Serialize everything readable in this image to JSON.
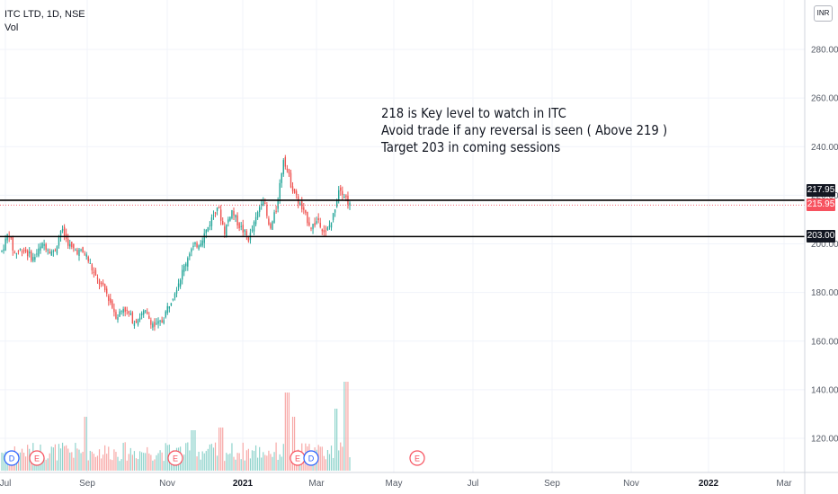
{
  "header": {
    "symbol": "ITC LTD, 1D, NSE",
    "indicator": "Vol"
  },
  "currency_badge": "INR",
  "annotation": {
    "lines": [
      "218 is Key level to watch in ITC",
      "Avoid trade if any reversal is seen ( Above 219 )",
      "Target 203 in coming sessions"
    ]
  },
  "price_labels": [
    {
      "value": "217.95",
      "color": "#131722"
    },
    {
      "value": "215.95",
      "color": "#f7525f"
    },
    {
      "value": "203.00",
      "color": "#131722"
    }
  ],
  "colors": {
    "up": "#26a69a",
    "down": "#ef5350",
    "up_vol": "#8fd3cc",
    "down_vol": "#f7a9a7",
    "grid": "#f0f3fa"
  },
  "chart_data": {
    "type": "candlestick",
    "title": "ITC LTD, 1D, NSE",
    "ylim": [
      105,
      300
    ],
    "y_ticks": [
      "280.00",
      "260.00",
      "240.00",
      "220.00",
      "200.00",
      "180.00",
      "160.00",
      "140.00",
      "120.00"
    ],
    "y_tick_values": [
      280,
      260,
      240,
      220,
      200,
      180,
      160,
      140,
      120
    ],
    "x_ticks": [
      "Jul",
      "Sep",
      "Nov",
      "2021",
      "Mar",
      "May",
      "Jul",
      "Sep",
      "Nov",
      "2022",
      "Mar"
    ],
    "horizontal_lines": [
      217.95,
      203.0
    ],
    "last_price": 215.95,
    "price_path": [
      {
        "t": 0,
        "p": 197
      },
      {
        "t": 0.02,
        "p": 205
      },
      {
        "t": 0.035,
        "p": 196
      },
      {
        "t": 0.06,
        "p": 198
      },
      {
        "t": 0.09,
        "p": 194
      },
      {
        "t": 0.12,
        "p": 200
      },
      {
        "t": 0.15,
        "p": 196
      },
      {
        "t": 0.17,
        "p": 206
      },
      {
        "t": 0.2,
        "p": 198
      },
      {
        "t": 0.24,
        "p": 196
      },
      {
        "t": 0.27,
        "p": 186
      },
      {
        "t": 0.3,
        "p": 180
      },
      {
        "t": 0.33,
        "p": 170
      },
      {
        "t": 0.35,
        "p": 174
      },
      {
        "t": 0.38,
        "p": 168
      },
      {
        "t": 0.41,
        "p": 172
      },
      {
        "t": 0.44,
        "p": 166
      },
      {
        "t": 0.46,
        "p": 168
      },
      {
        "t": 0.48,
        "p": 175
      },
      {
        "t": 0.51,
        "p": 185
      },
      {
        "t": 0.54,
        "p": 197
      },
      {
        "t": 0.57,
        "p": 201
      },
      {
        "t": 0.59,
        "p": 206
      },
      {
        "t": 0.62,
        "p": 216
      },
      {
        "t": 0.64,
        "p": 205
      },
      {
        "t": 0.66,
        "p": 214
      },
      {
        "t": 0.68,
        "p": 208
      },
      {
        "t": 0.71,
        "p": 202
      },
      {
        "t": 0.73,
        "p": 210
      },
      {
        "t": 0.75,
        "p": 220
      },
      {
        "t": 0.77,
        "p": 205
      },
      {
        "t": 0.79,
        "p": 215
      },
      {
        "t": 0.81,
        "p": 236
      },
      {
        "t": 0.83,
        "p": 225
      },
      {
        "t": 0.85,
        "p": 218
      },
      {
        "t": 0.87,
        "p": 212
      },
      {
        "t": 0.89,
        "p": 207
      },
      {
        "t": 0.91,
        "p": 210
      },
      {
        "t": 0.93,
        "p": 204
      },
      {
        "t": 0.95,
        "p": 210
      },
      {
        "t": 0.97,
        "p": 224
      },
      {
        "t": 1.0,
        "p": 216
      }
    ],
    "volume_spikes": [
      {
        "t": 0.24,
        "v": 1.0
      },
      {
        "t": 0.55,
        "v": 0.75
      },
      {
        "t": 0.63,
        "v": 0.8
      },
      {
        "t": 0.82,
        "v": 1.45
      },
      {
        "t": 0.84,
        "v": 1.0
      },
      {
        "t": 0.96,
        "v": 1.15
      },
      {
        "t": 0.99,
        "v": 1.65
      }
    ],
    "events": [
      "D",
      "E",
      "E",
      "E",
      "D",
      "E"
    ]
  }
}
